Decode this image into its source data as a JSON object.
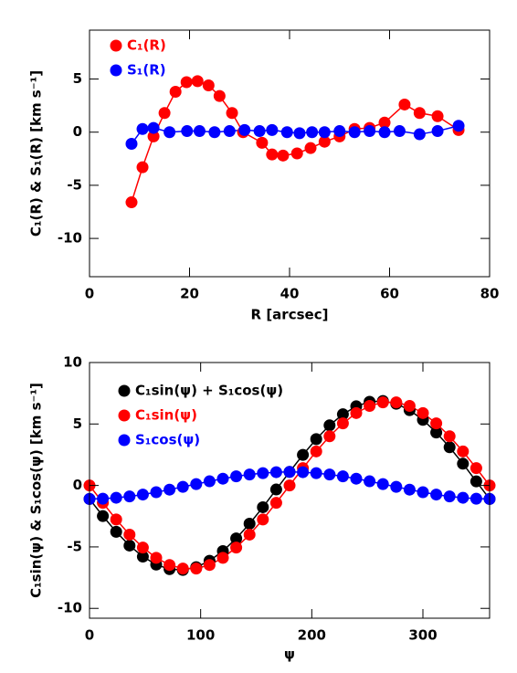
{
  "chart_data": [
    {
      "type": "line",
      "markers": true,
      "xlabel": "R [arcsec]",
      "ylabel": "C₁(R) & S₁(R) [km s⁻¹]",
      "xlim": [
        0,
        80
      ],
      "xticks": [
        0,
        20,
        40,
        60,
        80
      ],
      "ylim": [
        -13.6,
        9.6
      ],
      "yticks": [
        -10,
        -5,
        0,
        5
      ],
      "legend": "upper left",
      "series": [
        {
          "name": "C₁(R)",
          "color": "#ff0000",
          "x": [
            8.4,
            10.6,
            12.8,
            15.0,
            17.2,
            19.4,
            21.6,
            23.8,
            26.0,
            28.5,
            30.7,
            34.5,
            36.5,
            38.7,
            41.5,
            44.2,
            47.0,
            50.0,
            53.0,
            56.0,
            59.0,
            63.0,
            66.0,
            69.6,
            73.8
          ],
          "values": [
            -6.6,
            -3.3,
            -0.4,
            1.8,
            3.8,
            4.7,
            4.8,
            4.4,
            3.4,
            1.8,
            0.0,
            -1.0,
            -2.1,
            -2.2,
            -2.0,
            -1.5,
            -0.9,
            -0.4,
            0.3,
            0.4,
            0.9,
            2.6,
            1.8,
            1.5,
            0.2
          ]
        },
        {
          "name": "S₁(R)",
          "color": "#0000ff",
          "x": [
            8.4,
            10.6,
            12.8,
            16.0,
            19.5,
            22.0,
            25.0,
            28.0,
            31.0,
            34.0,
            36.5,
            39.5,
            42.0,
            44.5,
            47.0,
            50.0,
            53.0,
            56.0,
            59.0,
            62.0,
            66.0,
            69.6,
            73.8
          ],
          "values": [
            -1.1,
            0.3,
            0.4,
            0.0,
            0.1,
            0.1,
            0.0,
            0.1,
            0.2,
            0.1,
            0.2,
            0.0,
            -0.1,
            0.0,
            0.0,
            0.1,
            0.0,
            0.1,
            0.0,
            0.1,
            -0.2,
            0.1,
            0.6
          ]
        }
      ]
    },
    {
      "type": "line",
      "markers": true,
      "xlabel": "ψ",
      "ylabel": "C₁sin(ψ) & S₁cos(ψ) [km s⁻¹]",
      "xlim": [
        0,
        360
      ],
      "xticks": [
        0,
        100,
        200,
        300
      ],
      "ylim": [
        -10.8,
        10
      ],
      "yticks": [
        -10,
        -5,
        0,
        5,
        10
      ],
      "legend": "upper left",
      "series": [
        {
          "name": "C₁sin(ψ) + S₁cos(ψ)",
          "color": "#000000",
          "x": [
            0,
            12,
            24,
            36,
            48,
            60,
            72,
            84,
            96,
            108,
            120,
            132,
            144,
            156,
            168,
            180,
            192,
            204,
            216,
            228,
            240,
            252,
            264,
            276,
            288,
            300,
            312,
            324,
            336,
            348,
            360
          ],
          "values": [
            -1.1,
            -2.49,
            -3.77,
            -4.89,
            -5.79,
            -6.44,
            -6.81,
            -6.87,
            -6.65,
            -6.13,
            -5.34,
            -4.31,
            -3.11,
            -1.77,
            -0.33,
            1.1,
            2.49,
            3.77,
            4.89,
            5.79,
            6.44,
            6.81,
            6.87,
            6.65,
            6.13,
            5.34,
            4.31,
            3.11,
            1.77,
            0.33,
            -1.1
          ]
        },
        {
          "name": "C₁sin(ψ)",
          "color": "#ff0000",
          "x": [
            0,
            12,
            24,
            36,
            48,
            60,
            72,
            84,
            96,
            108,
            120,
            132,
            144,
            156,
            168,
            180,
            192,
            204,
            216,
            228,
            240,
            252,
            264,
            276,
            288,
            300,
            312,
            324,
            336,
            348,
            360
          ],
          "values": [
            0,
            -1.41,
            -2.77,
            -4.0,
            -5.05,
            -5.89,
            -6.47,
            -6.76,
            -6.76,
            -6.47,
            -5.89,
            -5.05,
            -4.0,
            -2.77,
            -1.41,
            0,
            1.41,
            2.77,
            4.0,
            5.05,
            5.89,
            6.47,
            6.76,
            6.76,
            6.47,
            5.89,
            5.05,
            4.0,
            2.77,
            1.41,
            0
          ]
        },
        {
          "name": "S₁cos(ψ)",
          "color": "#0000ff",
          "x": [
            0,
            12,
            24,
            36,
            48,
            60,
            72,
            84,
            96,
            108,
            120,
            132,
            144,
            156,
            168,
            180,
            192,
            204,
            216,
            228,
            240,
            252,
            264,
            276,
            288,
            300,
            312,
            324,
            336,
            348,
            360
          ],
          "values": [
            -1.1,
            -1.08,
            -1.0,
            -0.89,
            -0.74,
            -0.55,
            -0.34,
            -0.11,
            0.11,
            0.34,
            0.55,
            0.74,
            0.89,
            1.0,
            1.08,
            1.1,
            1.08,
            1.0,
            0.89,
            0.74,
            0.55,
            0.34,
            0.11,
            -0.11,
            -0.34,
            -0.55,
            -0.74,
            -0.89,
            -1.0,
            -1.08,
            -1.1
          ]
        }
      ]
    }
  ]
}
